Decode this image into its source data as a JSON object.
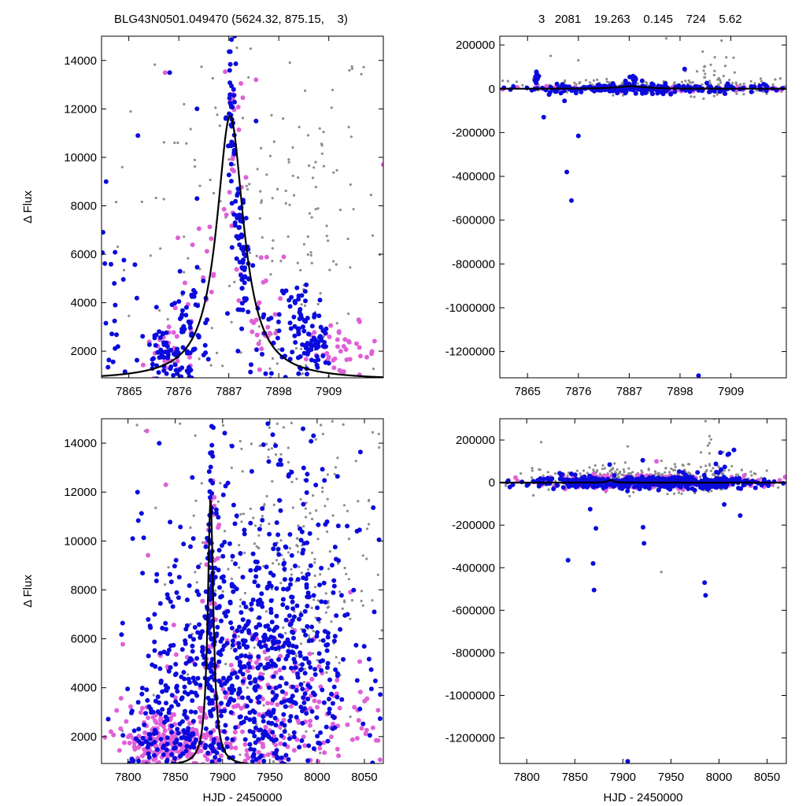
{
  "header": {
    "left": "BLG43N0501.049470 (5624.32, 875.15,    3)",
    "right": "3   2081    19.263    0.145    724    5.62"
  },
  "colors": {
    "blue": "#0a0adc",
    "magenta": "#e060d8",
    "gray": "#8c8c8c",
    "model": "#000000"
  },
  "chart_data": [
    {
      "id": "top-left",
      "type": "scatter",
      "ylabel": "Δ Flux",
      "xlabel": "",
      "xlim": [
        7859,
        7921
      ],
      "ylim": [
        900,
        15000
      ],
      "xticks": [
        7865,
        7876,
        7887,
        7898,
        7909
      ],
      "yticks": [
        2000,
        4000,
        6000,
        8000,
        10000,
        12000,
        14000
      ],
      "model": {
        "t0": 7887.3,
        "peak": 11700,
        "tE": 3.6,
        "base": 800
      },
      "series": [
        {
          "color": "blue",
          "clusters": [
            [
              7887.6,
              11800,
              0.6,
              2500,
              45
            ],
            [
              7889.3,
              7000,
              0.6,
              800,
              35
            ],
            [
              7890.6,
              4800,
              0.7,
              1100,
              35
            ],
            [
              7878.5,
              2600,
              2.6,
              1200,
              75
            ],
            [
              7872.0,
              1600,
              2.5,
              700,
              55
            ],
            [
              7903.0,
              3000,
              2.5,
              1300,
              60
            ],
            [
              7906.0,
              2200,
              1.5,
              700,
              40
            ],
            [
              7862.0,
              4000,
              2.0,
              2000,
              25
            ],
            [
              7895.0,
              2200,
              3.0,
              1200,
              25
            ]
          ],
          "examples": [
            [
              7860,
              9000
            ],
            [
              7874,
              13500
            ],
            [
              7867,
              10900
            ],
            [
              7893,
              11500
            ],
            [
              7880,
              12000
            ],
            [
              7880,
              8300
            ],
            [
              7909,
              1500
            ]
          ]
        },
        {
          "color": "magenta",
          "clusters": [
            [
              7888.0,
              10000,
              1.0,
              3000,
              30
            ],
            [
              7895.0,
              3800,
              2.0,
              1200,
              25
            ],
            [
              7912.0,
              1900,
              4.0,
              600,
              45
            ],
            [
              7873.0,
              1600,
              3.0,
              600,
              30
            ],
            [
              7880.0,
              5000,
              3.0,
              2000,
              20
            ]
          ],
          "examples": [
            [
              7873,
              13500
            ],
            [
              7893,
              13200
            ],
            [
              7921,
              9700
            ]
          ]
        },
        {
          "color": "gray",
          "clusters": [
            [
              7890.0,
              7000,
              16.0,
              4500,
              140
            ],
            [
              7905.0,
              7000,
              8.0,
              4500,
              60
            ]
          ],
          "examples": []
        }
      ]
    },
    {
      "id": "top-right",
      "type": "scatter",
      "ylabel": "",
      "xlabel": "",
      "xlim": [
        7859,
        7921
      ],
      "ylim": [
        -1320000,
        240000
      ],
      "xticks": [
        7865,
        7876,
        7887,
        7898,
        7909
      ],
      "yticks": [
        -1200000,
        -1000000,
        -800000,
        -600000,
        -400000,
        -200000,
        0,
        200000
      ],
      "model": {
        "t0": 7887.3,
        "peak": 11700,
        "tE": 3.6,
        "base": 0
      },
      "series": [
        {
          "color": "blue",
          "clusters": [
            [
              7890.0,
              0,
              16.0,
              9000,
              240
            ],
            [
              7867.0,
              45000,
              0.3,
              25000,
              12
            ],
            [
              7888.0,
              40000,
              0.8,
              20000,
              15
            ],
            [
              7893.0,
              -5000,
              1.0,
              15000,
              10
            ]
          ],
          "examples": [
            [
              7868.5,
              -130000
            ],
            [
              7873.5,
              -380000
            ],
            [
              7874.5,
              -510000
            ],
            [
              7876,
              -215000
            ],
            [
              7873,
              -55000
            ],
            [
              7896,
              -25000
            ],
            [
              7899,
              90000
            ],
            [
              7902,
              -1310000
            ]
          ]
        },
        {
          "color": "magenta",
          "clusters": [
            [
              7893.0,
              0,
              15.0,
              5000,
              120
            ]
          ],
          "examples": [
            [
              7899,
              90000
            ],
            [
              7915,
              5000
            ]
          ]
        },
        {
          "color": "gray",
          "clusters": [
            [
              7893.0,
              10000,
              16.0,
              18000,
              200
            ],
            [
              7905.0,
              60000,
              3.0,
              50000,
              30
            ]
          ],
          "examples": [
            [
              7870,
              150000
            ],
            [
              7876,
              130000
            ],
            [
              7895,
              230000
            ],
            [
              7907,
              220000
            ]
          ]
        }
      ]
    },
    {
      "id": "bottom-left",
      "type": "scatter",
      "ylabel": "Δ Flux",
      "xlabel": "HJD - 2450000",
      "xlim": [
        7772,
        8070
      ],
      "ylim": [
        900,
        15000
      ],
      "xticks": [
        7800,
        7850,
        7900,
        7950,
        8000,
        8050
      ],
      "yticks": [
        2000,
        4000,
        6000,
        8000,
        10000,
        12000,
        14000
      ],
      "model": {
        "t0": 7887.3,
        "peak": 11700,
        "tE": 3.6,
        "base": 800
      },
      "series": [
        {
          "color": "blue",
          "clusters": [
            [
              7925.0,
              4500,
              55.0,
              3000,
              700
            ],
            [
              7887.5,
              9000,
              2.0,
              3500,
              80
            ],
            [
              7840.0,
              2000,
              25.0,
              1000,
              120
            ],
            [
              7975.0,
              8000,
              40.0,
              4000,
              150
            ]
          ],
          "examples": [
            [
              7810,
              12000
            ],
            [
              7805,
              10100
            ],
            [
              7833,
              14000
            ],
            [
              7868,
              12600
            ]
          ]
        },
        {
          "color": "magenta",
          "clusters": [
            [
              7845.0,
              1700,
              30.0,
              700,
              250
            ],
            [
              7940.0,
              3000,
              60.0,
              1800,
              250
            ],
            [
              7890.0,
              8000,
              5.0,
              4000,
              30
            ]
          ],
          "examples": [
            [
              7820,
              14500
            ],
            [
              7840,
              12300
            ]
          ]
        },
        {
          "color": "gray",
          "clusters": [
            [
              7960.0,
              9000,
              50.0,
              4500,
              350
            ]
          ],
          "examples": [
            [
              7818,
              14500
            ],
            [
              7855,
              14800
            ]
          ]
        }
      ]
    },
    {
      "id": "bottom-right",
      "type": "scatter",
      "ylabel": "",
      "xlabel": "HJD - 2450000",
      "xlim": [
        7772,
        8070
      ],
      "ylim": [
        -1320000,
        300000
      ],
      "xticks": [
        7800,
        7850,
        7900,
        7950,
        8000,
        8050
      ],
      "yticks": [
        -1200000,
        -1000000,
        -800000,
        -600000,
        -400000,
        -200000,
        0,
        200000
      ],
      "model": {
        "t0": 7887.3,
        "peak": 11700,
        "tE": 3.6,
        "base": 0
      },
      "series": [
        {
          "color": "blue",
          "clusters": [
            [
              7925.0,
              0,
              60.0,
              12000,
              500
            ],
            [
              7840.0,
              15000,
              15.0,
              20000,
              20
            ],
            [
              7960.0,
              20000,
              35.0,
              30000,
              30
            ],
            [
              8005.0,
              100000,
              5.0,
              60000,
              10
            ]
          ],
          "examples": [
            [
              7843,
              -365000
            ],
            [
              7866,
              -125000
            ],
            [
              7869,
              -380000
            ],
            [
              7870,
              -505000
            ],
            [
              7872,
              -215000
            ],
            [
              7921,
              -210000
            ],
            [
              7922,
              -285000
            ],
            [
              7985,
              -470000
            ],
            [
              7986,
              -530000
            ],
            [
              8022,
              -155000
            ],
            [
              7905,
              -1310000
            ]
          ]
        },
        {
          "color": "magenta",
          "clusters": [
            [
              7920.0,
              5000,
              60.0,
              15000,
              200
            ]
          ],
          "examples": [
            [
              7935,
              100000
            ]
          ]
        },
        {
          "color": "gray",
          "clusters": [
            [
              7930.0,
              20000,
              55.0,
              30000,
              350
            ],
            [
              7995.0,
              150000,
              10.0,
              80000,
              15
            ]
          ],
          "examples": [
            [
              7815,
              190000
            ],
            [
              7905,
              170000
            ],
            [
              7940,
              -420000
            ],
            [
              7995,
              300000
            ]
          ]
        }
      ]
    }
  ]
}
